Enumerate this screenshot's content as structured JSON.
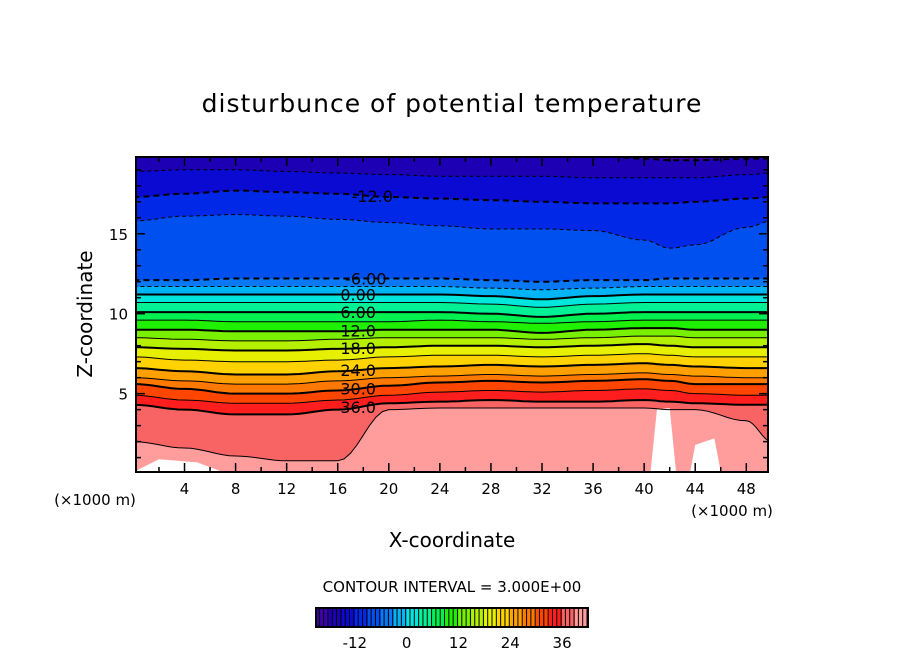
{
  "chart_data": {
    "type": "contour",
    "title": "disturbunce of potential temperature",
    "xlabel": "X-coordinate",
    "ylabel": "Z-coordinate",
    "x_unit_left": "(×1000 m)",
    "x_unit_right": "(×1000 m)",
    "xlim": [
      0.2,
      49.7
    ],
    "ylim": [
      0.1,
      19.8
    ],
    "xticks": [
      4,
      8,
      12,
      16,
      20,
      24,
      28,
      32,
      36,
      40,
      44,
      48
    ],
    "yticks": [
      5,
      10,
      15
    ],
    "contour_interval_text": "CONTOUR INTERVAL = 3.000E+00",
    "x_samples": [
      0,
      4,
      8,
      12,
      16,
      20,
      24,
      28,
      32,
      36,
      40,
      42,
      44,
      48,
      50
    ],
    "contours": [
      {
        "level": -18,
        "z": [
          19.9,
          19.9,
          19.9,
          19.9,
          19.9,
          19.9,
          19.9,
          19.9,
          19.9,
          19.9,
          19.7,
          19.6,
          19.6,
          19.7,
          19.7
        ]
      },
      {
        "level": -15,
        "z": [
          18.9,
          19.0,
          19.0,
          18.9,
          18.8,
          18.7,
          18.6,
          18.6,
          18.6,
          18.5,
          18.5,
          18.5,
          18.5,
          18.7,
          18.8
        ]
      },
      {
        "level": -12,
        "z": [
          17.3,
          17.5,
          17.7,
          17.6,
          17.5,
          17.3,
          17.2,
          17.1,
          17.0,
          16.9,
          16.9,
          16.9,
          17.0,
          17.2,
          17.3
        ]
      },
      {
        "level": -9,
        "z": [
          15.8,
          16.1,
          16.2,
          16.1,
          15.9,
          15.7,
          15.5,
          15.3,
          15.3,
          15.2,
          14.6,
          14.1,
          14.3,
          15.4,
          15.8
        ]
      },
      {
        "level": -6,
        "z": [
          12.1,
          12.1,
          12.2,
          12.2,
          12.2,
          12.2,
          12.2,
          12.1,
          12.0,
          12.1,
          12.1,
          12.2,
          12.2,
          12.2,
          12.2
        ]
      },
      {
        "level": -3,
        "z": [
          11.7,
          11.7,
          11.7,
          11.7,
          11.7,
          11.7,
          11.7,
          11.6,
          11.5,
          11.6,
          11.7,
          11.7,
          11.7,
          11.7,
          11.7
        ]
      },
      {
        "level": 0,
        "z": [
          11.2,
          11.2,
          11.2,
          11.2,
          11.2,
          11.2,
          11.2,
          11.1,
          10.9,
          11.1,
          11.2,
          11.2,
          11.2,
          11.2,
          11.2
        ]
      },
      {
        "level": 3,
        "z": [
          10.7,
          10.7,
          10.7,
          10.7,
          10.7,
          10.7,
          10.7,
          10.6,
          10.4,
          10.6,
          10.7,
          10.7,
          10.7,
          10.7,
          10.7
        ]
      },
      {
        "level": 6,
        "z": [
          10.1,
          10.1,
          10.1,
          10.1,
          10.1,
          10.1,
          10.1,
          10.0,
          9.8,
          10.0,
          10.1,
          10.1,
          10.1,
          10.1,
          10.1
        ]
      },
      {
        "level": 9,
        "z": [
          9.6,
          9.6,
          9.5,
          9.5,
          9.5,
          9.5,
          9.6,
          9.5,
          9.4,
          9.5,
          9.6,
          9.6,
          9.6,
          9.6,
          9.6
        ]
      },
      {
        "level": 12,
        "z": [
          9.0,
          9.0,
          8.9,
          8.9,
          8.9,
          9.0,
          9.0,
          9.0,
          8.8,
          9.0,
          9.1,
          9.1,
          9.0,
          9.0,
          9.0
        ]
      },
      {
        "level": 15,
        "z": [
          8.5,
          8.4,
          8.3,
          8.3,
          8.4,
          8.5,
          8.5,
          8.5,
          8.4,
          8.5,
          8.6,
          8.6,
          8.5,
          8.5,
          8.5
        ]
      },
      {
        "level": 18,
        "z": [
          7.9,
          7.8,
          7.7,
          7.7,
          7.8,
          7.9,
          8.0,
          8.0,
          7.9,
          8.0,
          8.1,
          8.0,
          7.9,
          7.9,
          7.9
        ]
      },
      {
        "level": 21,
        "z": [
          7.3,
          7.1,
          7.0,
          7.0,
          7.1,
          7.3,
          7.4,
          7.4,
          7.3,
          7.4,
          7.5,
          7.4,
          7.3,
          7.3,
          7.3
        ]
      },
      {
        "level": 24,
        "z": [
          6.6,
          6.4,
          6.2,
          6.2,
          6.4,
          6.6,
          6.7,
          6.8,
          6.7,
          6.8,
          6.9,
          6.8,
          6.7,
          6.6,
          6.6
        ]
      },
      {
        "level": 27,
        "z": [
          6.0,
          5.8,
          5.6,
          5.6,
          5.8,
          6.0,
          6.1,
          6.2,
          6.1,
          6.2,
          6.3,
          6.2,
          6.1,
          6.0,
          6.0
        ]
      },
      {
        "level": 30,
        "z": [
          5.6,
          5.3,
          5.0,
          5.0,
          5.2,
          5.5,
          5.7,
          5.8,
          5.7,
          5.8,
          5.9,
          5.8,
          5.6,
          5.6,
          5.6
        ]
      },
      {
        "level": 33,
        "z": [
          4.9,
          4.6,
          4.4,
          4.4,
          4.6,
          4.9,
          5.1,
          5.2,
          5.1,
          5.2,
          5.3,
          5.2,
          5.0,
          4.9,
          4.9
        ]
      },
      {
        "level": 36,
        "z": [
          4.3,
          4.0,
          3.7,
          3.7,
          4.0,
          4.4,
          4.5,
          4.6,
          4.5,
          4.5,
          4.6,
          4.5,
          4.4,
          4.3,
          4.3
        ]
      },
      {
        "level": 39,
        "z": [
          2.0,
          1.6,
          1.1,
          0.8,
          0.8,
          4.0,
          4.1,
          4.1,
          4.1,
          4.1,
          4.1,
          4.0,
          4.0,
          3.3,
          2.0
        ]
      }
    ],
    "contour_labels": [
      {
        "text": "-12.0",
        "level": -12,
        "x": 18.7
      },
      {
        "text": "-6.00",
        "level": -6,
        "x": 18.2
      },
      {
        "text": "0.00",
        "level": 0,
        "x": 17.6
      },
      {
        "text": "6.00",
        "level": 6,
        "x": 17.6
      },
      {
        "text": "12.0",
        "level": 12,
        "x": 17.6
      },
      {
        "text": "18.0",
        "level": 18,
        "x": 17.6
      },
      {
        "text": "24.0",
        "level": 24,
        "x": 17.6
      },
      {
        "text": "30.0",
        "level": 30,
        "x": 17.6
      },
      {
        "text": "36.0",
        "level": 36,
        "x": 17.6
      }
    ],
    "colorbar": {
      "range": [
        -21,
        42
      ],
      "ticks": [
        "-12",
        "0",
        "12",
        "24",
        "36"
      ],
      "tick_values": [
        -12,
        0,
        12,
        24,
        36
      ]
    },
    "band_colors": {
      "-24": "#5a0096",
      "-21": "#3c00aa",
      "-18": "#1e00b4",
      "-15": "#0a0ad2",
      "-12": "#0028e6",
      "-9": "#0050f0",
      "-6": "#0a78f5",
      "-3": "#00b4f5",
      "0": "#00e6dc",
      "3": "#00f096",
      "6": "#00f050",
      "9": "#1ef000",
      "12": "#78f000",
      "15": "#b4f000",
      "18": "#e6f000",
      "21": "#ffd200",
      "24": "#ffa000",
      "27": "#ff7800",
      "30": "#ff4600",
      "33": "#ff1e1e",
      "36": "#f86464",
      "39": "#ff9c9c"
    }
  }
}
